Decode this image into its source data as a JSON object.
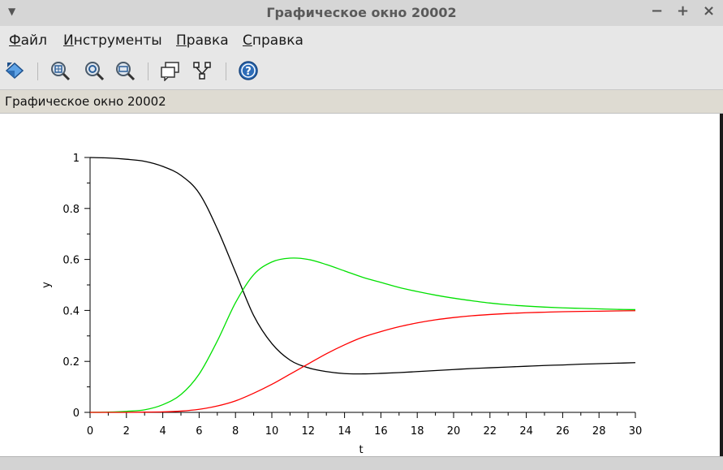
{
  "window": {
    "title": "Графическое окно 20002",
    "controls": {
      "minimize": "−",
      "maximize": "+",
      "close": "×"
    }
  },
  "menu": {
    "file": {
      "accel": "Ф",
      "rest": "айл"
    },
    "tools": {
      "accel": "И",
      "rest": "нструменты"
    },
    "edit": {
      "accel": "П",
      "rest": "равка"
    },
    "help": {
      "accel": "С",
      "rest": "правка"
    }
  },
  "toolbar": {
    "icons": [
      "rotate-icon",
      "zoom-in-icon",
      "zoom-original-icon",
      "zoom-out-icon",
      "datatip-icon",
      "edit-curve-icon",
      "help-icon"
    ]
  },
  "infobar": {
    "text": "Графическое окно 20002"
  },
  "chart_data": {
    "type": "line",
    "title": "",
    "xlabel": "t",
    "ylabel": "y",
    "xlim": [
      0,
      30
    ],
    "ylim": [
      0,
      1
    ],
    "x_ticks": [
      "0",
      "2",
      "4",
      "6",
      "8",
      "10",
      "12",
      "14",
      "16",
      "18",
      "20",
      "22",
      "24",
      "26",
      "28",
      "30"
    ],
    "y_ticks": [
      "0",
      "0.2",
      "0.4",
      "0.6",
      "0.8",
      "1"
    ],
    "grid": false,
    "x": [
      0,
      1,
      2,
      3,
      4,
      5,
      6,
      7,
      8,
      9,
      10,
      11,
      12,
      13,
      14,
      15,
      16,
      17,
      18,
      19,
      20,
      21,
      22,
      23,
      24,
      25,
      26,
      27,
      28,
      29,
      30
    ],
    "series": [
      {
        "color": "#000000",
        "values": [
          1.0,
          0.998,
          0.993,
          0.985,
          0.965,
          0.93,
          0.86,
          0.72,
          0.55,
          0.38,
          0.27,
          0.205,
          0.175,
          0.16,
          0.152,
          0.151,
          0.153,
          0.156,
          0.16,
          0.164,
          0.168,
          0.172,
          0.175,
          0.178,
          0.181,
          0.184,
          0.186,
          0.189,
          0.191,
          0.193,
          0.195
        ]
      },
      {
        "color": "#00e000",
        "values": [
          0.0,
          0.001,
          0.004,
          0.01,
          0.03,
          0.07,
          0.15,
          0.28,
          0.43,
          0.54,
          0.59,
          0.605,
          0.6,
          0.58,
          0.555,
          0.53,
          0.51,
          0.49,
          0.474,
          0.46,
          0.448,
          0.438,
          0.429,
          0.422,
          0.417,
          0.413,
          0.41,
          0.408,
          0.406,
          0.404,
          0.403
        ]
      },
      {
        "color": "#ff0000",
        "values": [
          0.0,
          0.0,
          0.0,
          0.001,
          0.002,
          0.005,
          0.012,
          0.025,
          0.045,
          0.075,
          0.11,
          0.15,
          0.19,
          0.23,
          0.265,
          0.295,
          0.317,
          0.336,
          0.351,
          0.363,
          0.372,
          0.379,
          0.384,
          0.388,
          0.391,
          0.393,
          0.395,
          0.396,
          0.397,
          0.398,
          0.399
        ]
      }
    ]
  }
}
